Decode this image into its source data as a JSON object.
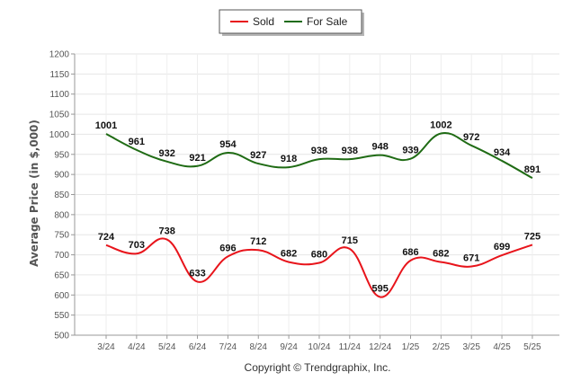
{
  "chart_data": {
    "type": "line",
    "categories": [
      "3/24",
      "4/24",
      "5/24",
      "6/24",
      "7/24",
      "8/24",
      "9/24",
      "10/24",
      "11/24",
      "12/24",
      "1/25",
      "2/25",
      "3/25",
      "4/25",
      "5/25"
    ],
    "series": [
      {
        "name": "Sold",
        "color": "#e8141b",
        "values": [
          724,
          703,
          738,
          633,
          696,
          712,
          682,
          680,
          715,
          595,
          686,
          682,
          671,
          699,
          725
        ]
      },
      {
        "name": "For Sale",
        "color": "#1f6b14",
        "values": [
          1001,
          961,
          932,
          921,
          954,
          927,
          918,
          938,
          938,
          948,
          939,
          1002,
          972,
          934,
          891
        ]
      }
    ],
    "ylabel": "Average Price (in $,000)",
    "ylim": [
      500,
      1200
    ],
    "yticks": [
      500,
      550,
      600,
      650,
      700,
      750,
      800,
      850,
      900,
      950,
      1000,
      1050,
      1100,
      1150,
      1200
    ],
    "grid": true,
    "legend_position": "top-center",
    "copyright": "Copyright © Trendgraphix, Inc."
  }
}
